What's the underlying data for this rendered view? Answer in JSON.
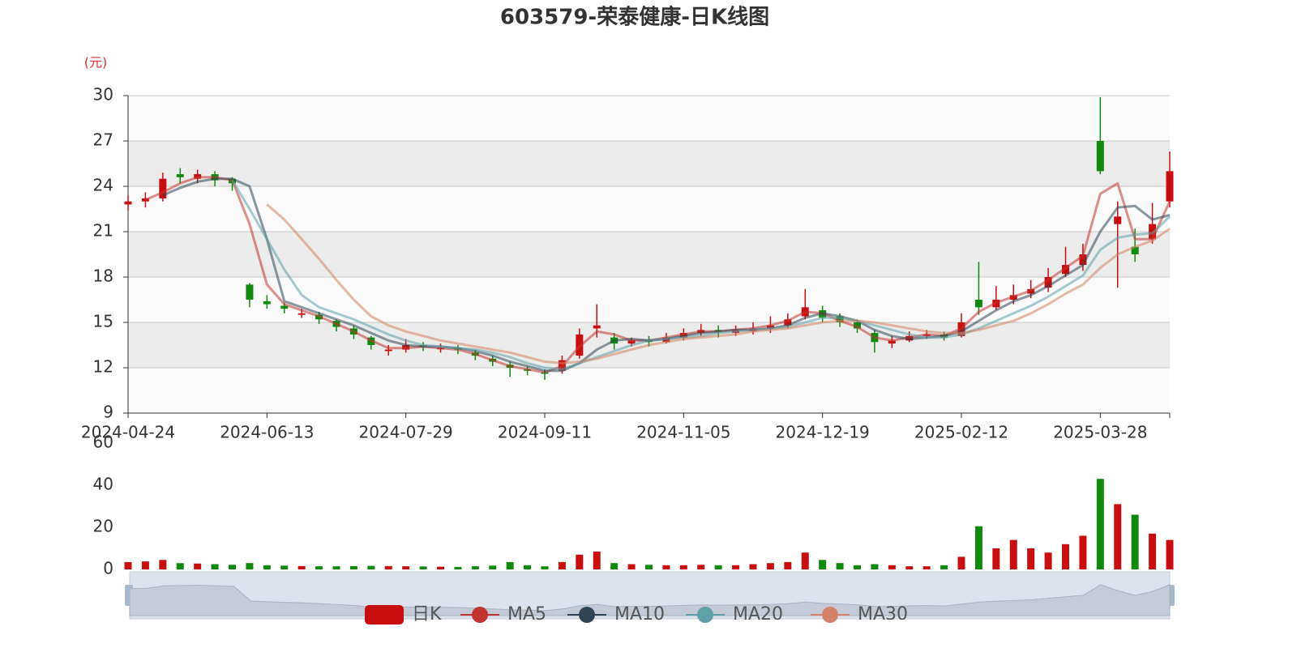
{
  "chart_data": {
    "type": "candlestick",
    "title": "603579-荣泰健康-日K线图",
    "y_unit": "(元)",
    "categories": [
      "2024-04-24",
      null,
      null,
      null,
      null,
      null,
      null,
      null,
      "2024-06-13",
      null,
      null,
      null,
      null,
      null,
      null,
      null,
      "2024-07-29",
      null,
      null,
      null,
      null,
      null,
      null,
      null,
      "2024-09-11",
      null,
      null,
      null,
      null,
      null,
      null,
      null,
      "2024-11-05",
      null,
      null,
      null,
      null,
      null,
      null,
      null,
      "2024-12-19",
      null,
      null,
      null,
      null,
      null,
      null,
      null,
      "2025-02-12",
      null,
      null,
      null,
      null,
      null,
      null,
      null,
      "2025-03-28",
      null,
      null,
      null,
      null
    ],
    "ylim": [
      9,
      30
    ],
    "yticks": [
      9,
      12,
      15,
      18,
      21,
      24,
      27,
      30
    ],
    "grid": true,
    "up_color": "#c80f0f",
    "down_color": "#0f8a0f",
    "series": [
      {
        "name": "日K",
        "color": "#c80f0f",
        "values": [
          [
            22.8,
            23.0,
            22.4,
            23.4
          ],
          [
            23.0,
            23.2,
            22.6,
            23.6
          ],
          [
            23.2,
            24.5,
            23.0,
            24.9
          ],
          [
            24.8,
            24.6,
            24.2,
            25.2
          ],
          [
            24.5,
            24.8,
            24.2,
            25.1
          ],
          [
            24.8,
            24.4,
            24.0,
            25.0
          ],
          [
            24.5,
            24.2,
            23.7,
            24.6
          ],
          [
            17.5,
            16.5,
            16.0,
            17.6
          ],
          [
            16.4,
            16.2,
            15.9,
            16.8
          ],
          [
            16.1,
            15.9,
            15.6,
            16.3
          ],
          [
            15.5,
            15.6,
            15.3,
            15.9
          ],
          [
            15.5,
            15.2,
            14.9,
            15.7
          ],
          [
            15.1,
            14.7,
            14.4,
            15.2
          ],
          [
            14.6,
            14.2,
            13.9,
            14.8
          ],
          [
            14.0,
            13.5,
            13.2,
            14.1
          ],
          [
            13.1,
            13.2,
            12.8,
            13.5
          ],
          [
            13.2,
            13.5,
            13.0,
            13.9
          ],
          [
            13.5,
            13.4,
            13.1,
            13.7
          ],
          [
            13.3,
            13.3,
            13.0,
            13.6
          ],
          [
            13.3,
            13.2,
            12.9,
            13.5
          ],
          [
            13.0,
            12.8,
            12.5,
            13.2
          ],
          [
            12.6,
            12.4,
            12.1,
            12.8
          ],
          [
            12.2,
            12.0,
            11.4,
            12.4
          ],
          [
            11.9,
            11.8,
            11.5,
            12.1
          ],
          [
            11.7,
            11.6,
            11.2,
            11.9
          ],
          [
            11.8,
            12.5,
            11.6,
            12.8
          ],
          [
            12.8,
            14.2,
            12.6,
            14.6
          ],
          [
            14.6,
            14.8,
            14.0,
            16.2
          ],
          [
            14.0,
            13.6,
            13.2,
            14.3
          ],
          [
            13.6,
            13.8,
            13.4,
            14.0
          ],
          [
            13.8,
            13.7,
            13.4,
            14.1
          ],
          [
            13.7,
            14.0,
            13.6,
            14.3
          ],
          [
            14.0,
            14.3,
            13.8,
            14.6
          ],
          [
            14.3,
            14.5,
            14.1,
            14.9
          ],
          [
            14.5,
            14.4,
            14.0,
            14.8
          ],
          [
            14.3,
            14.5,
            14.1,
            14.8
          ],
          [
            14.4,
            14.6,
            14.2,
            15.0
          ],
          [
            14.6,
            14.8,
            14.3,
            15.4
          ],
          [
            14.8,
            15.2,
            14.6,
            15.6
          ],
          [
            15.4,
            16.0,
            15.2,
            17.2
          ],
          [
            15.8,
            15.3,
            15.0,
            16.1
          ],
          [
            15.4,
            15.0,
            14.7,
            15.6
          ],
          [
            15.0,
            14.6,
            14.3,
            15.2
          ],
          [
            14.3,
            13.7,
            13.0,
            14.5
          ],
          [
            13.6,
            13.8,
            13.3,
            14.1
          ],
          [
            13.8,
            14.1,
            13.7,
            14.4
          ],
          [
            14.1,
            14.2,
            13.9,
            14.5
          ],
          [
            14.2,
            14.0,
            13.8,
            14.4
          ],
          [
            14.1,
            15.0,
            14.0,
            15.6
          ],
          [
            16.5,
            16.0,
            15.5,
            19.0
          ],
          [
            16.0,
            16.5,
            15.8,
            17.4
          ],
          [
            16.5,
            16.8,
            16.2,
            17.5
          ],
          [
            16.9,
            17.2,
            16.6,
            17.8
          ],
          [
            17.3,
            18.0,
            17.0,
            18.6
          ],
          [
            18.2,
            18.8,
            18.0,
            20.0
          ],
          [
            18.8,
            19.5,
            18.4,
            20.2
          ],
          [
            27.0,
            25.0,
            24.8,
            29.9
          ],
          [
            21.5,
            22.0,
            17.3,
            23.0
          ],
          [
            20.0,
            19.5,
            19.0,
            21.2
          ],
          [
            20.5,
            21.5,
            20.2,
            22.9
          ],
          [
            23.0,
            25.0,
            22.6,
            26.3
          ]
        ]
      },
      {
        "name": "MA5",
        "color": "#c23531",
        "values": [
          null,
          23.1,
          23.6,
          24.2,
          24.6,
          24.6,
          24.4,
          21.5,
          17.5,
          16.2,
          15.8,
          15.4,
          14.9,
          14.4,
          13.8,
          13.3,
          13.3,
          13.4,
          13.3,
          13.2,
          12.9,
          12.5,
          12.1,
          11.9,
          11.7,
          12.1,
          13.4,
          14.4,
          14.2,
          13.8,
          13.8,
          14.0,
          14.2,
          14.4,
          14.4,
          14.5,
          14.6,
          14.8,
          15.1,
          15.7,
          15.6,
          15.1,
          14.7,
          14.0,
          13.8,
          14.0,
          14.2,
          14.1,
          14.6,
          15.7,
          16.3,
          16.7,
          17.1,
          17.8,
          18.6,
          19.4,
          23.5,
          24.2,
          20.5,
          20.5,
          23.0
        ]
      },
      {
        "name": "MA10",
        "color": "#2f4554",
        "values": [
          null,
          null,
          23.4,
          23.9,
          24.3,
          24.5,
          24.5,
          24.0,
          20.5,
          16.4,
          16.0,
          15.6,
          15.2,
          14.8,
          14.3,
          13.8,
          13.5,
          13.4,
          13.4,
          13.3,
          13.1,
          12.8,
          12.4,
          12.1,
          11.8,
          11.8,
          12.3,
          13.2,
          13.8,
          13.9,
          13.8,
          13.9,
          14.1,
          14.3,
          14.4,
          14.5,
          14.5,
          14.6,
          14.8,
          15.3,
          15.6,
          15.4,
          15.1,
          14.5,
          14.1,
          13.9,
          14.0,
          14.1,
          14.4,
          15.1,
          15.8,
          16.4,
          16.8,
          17.4,
          18.1,
          18.8,
          21.0,
          22.6,
          22.7,
          21.8,
          22.1
        ]
      },
      {
        "name": "MA20",
        "color": "#61a0a8",
        "values": [
          null,
          null,
          null,
          null,
          null,
          null,
          24.4,
          22.5,
          20.5,
          18.5,
          16.8,
          16.0,
          15.6,
          15.2,
          14.7,
          14.2,
          13.8,
          13.5,
          13.4,
          13.3,
          13.2,
          13.0,
          12.7,
          12.3,
          12.0,
          11.9,
          12.3,
          12.7,
          13.1,
          13.5,
          13.8,
          13.9,
          14.0,
          14.1,
          14.3,
          14.4,
          14.5,
          14.6,
          14.7,
          15.0,
          15.3,
          15.3,
          15.1,
          14.8,
          14.5,
          14.2,
          14.0,
          14.0,
          14.2,
          14.6,
          15.1,
          15.6,
          16.1,
          16.7,
          17.4,
          18.1,
          19.8,
          20.6,
          20.8,
          20.9,
          22.0
        ]
      },
      {
        "name": "MA30",
        "color": "#d48265",
        "values": [
          null,
          null,
          null,
          null,
          null,
          null,
          null,
          null,
          22.8,
          21.8,
          20.5,
          19.2,
          17.8,
          16.5,
          15.4,
          14.8,
          14.4,
          14.1,
          13.8,
          13.6,
          13.4,
          13.2,
          13.0,
          12.7,
          12.4,
          12.3,
          12.4,
          12.6,
          12.9,
          13.2,
          13.5,
          13.7,
          13.9,
          14.0,
          14.1,
          14.2,
          14.4,
          14.5,
          14.6,
          14.8,
          15.0,
          15.1,
          15.1,
          15.0,
          14.8,
          14.6,
          14.4,
          14.3,
          14.3,
          14.5,
          14.8,
          15.1,
          15.6,
          16.2,
          16.9,
          17.5,
          18.6,
          19.5,
          20.0,
          20.4,
          21.2
        ]
      }
    ],
    "volume": {
      "ylim": [
        0,
        60
      ],
      "yticks": [
        0,
        20,
        40,
        60
      ],
      "values": [
        3.5,
        3.8,
        4.5,
        3.0,
        2.8,
        2.5,
        2.2,
        3.0,
        2.0,
        1.8,
        1.6,
        1.5,
        1.5,
        1.6,
        1.7,
        1.6,
        1.5,
        1.4,
        1.3,
        1.2,
        1.5,
        1.8,
        3.5,
        2.0,
        1.5,
        3.5,
        7.0,
        8.5,
        3.0,
        2.5,
        2.2,
        2.0,
        2.0,
        2.2,
        2.0,
        2.0,
        2.5,
        3.0,
        3.5,
        8.0,
        4.5,
        3.0,
        2.0,
        2.5,
        2.0,
        1.5,
        1.5,
        2.0,
        6.0,
        20.5,
        10.0,
        14.0,
        10.0,
        8.0,
        12.0,
        16.0,
        43.0,
        31.0,
        26.0,
        17.0,
        14.0
      ]
    }
  }
}
